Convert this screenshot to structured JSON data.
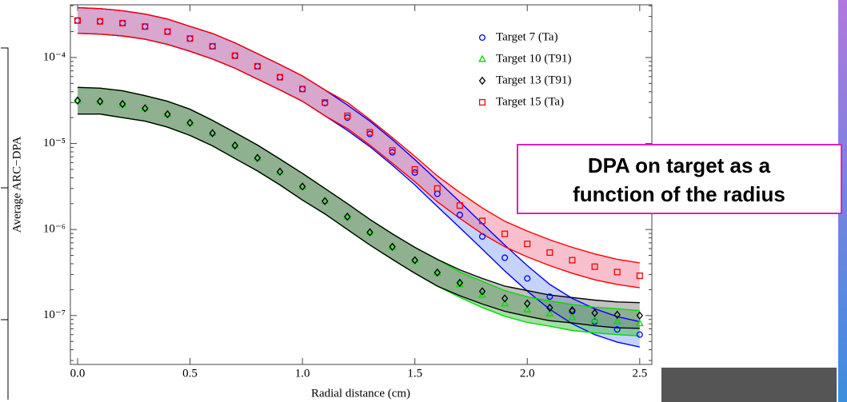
{
  "chart_data": {
    "type": "scatter",
    "y_label": "Average ARC−DPA",
    "x_label": "Radial distance (cm)",
    "log_y": true,
    "legend": "upper right",
    "annotation": [
      "DPA on target as a",
      "function of the radius"
    ],
    "x": [
      0,
      0.1,
      0.2,
      0.3,
      0.4,
      0.5,
      0.6,
      0.7,
      0.8,
      0.9,
      1.0,
      1.1,
      1.2,
      1.3,
      1.4,
      1.5,
      1.6,
      1.7,
      1.8,
      1.9,
      2.0,
      2.1,
      2.2,
      2.3,
      2.4,
      2.5
    ],
    "xlim": [
      -0.032,
      2.554
    ],
    "xticks": [
      {
        "value": 0,
        "label": "0.0"
      },
      {
        "value": 0.5,
        "label": "0.5"
      },
      {
        "value": 1,
        "label": "1.0"
      },
      {
        "value": 1.5,
        "label": "1.5"
      },
      {
        "value": 2,
        "label": "2.0"
      },
      {
        "value": 2.5,
        "label": "2.5"
      }
    ],
    "ylim": [
      2.7e-08,
      0.00041
    ],
    "yticks": [
      {
        "value": 1e-07,
        "label": "10⁻⁷"
      },
      {
        "value": 1e-06,
        "label": "10⁻⁶"
      },
      {
        "value": 1e-05,
        "label": "10⁻⁵"
      },
      {
        "value": 0.0001,
        "label": "10⁻⁴"
      }
    ],
    "series": [
      {
        "name": "Target 7 (Ta)",
        "color": "#0000ff",
        "marker": "circle",
        "band_color": "#7f9fff",
        "values": [
          0.000269,
          0.000263,
          0.000251,
          0.000229,
          0.0002,
          0.000166,
          0.000135,
          0.000105,
          7.9e-05,
          5.9e-05,
          4.3e-05,
          2.95e-05,
          2e-05,
          1.29e-05,
          7.9e-06,
          4.6e-06,
          2.6e-06,
          1.48e-06,
          8.3e-07,
          4.7e-07,
          2.7e-07,
          1.66e-07,
          1.12e-07,
          8.5e-08,
          6.9e-08,
          6e-08
        ],
        "band_upper": [
          0.00038,
          0.00037,
          0.00035,
          0.00032,
          0.00028,
          0.00023,
          0.00019,
          0.000148,
          0.000111,
          8.3e-05,
          6.1e-05,
          4.2e-05,
          2.8e-05,
          1.82e-05,
          1.11e-05,
          6.5e-06,
          3.7e-06,
          2.1e-06,
          1.17e-06,
          6.6e-07,
          3.8e-07,
          2.3e-07,
          1.58e-07,
          1.2e-07,
          9.7e-08,
          8.5e-08
        ],
        "band_lower": [
          0.000191,
          0.000187,
          0.000178,
          0.000163,
          0.000142,
          0.000118,
          9.6e-05,
          7.5e-05,
          5.6e-05,
          4.2e-05,
          3.1e-05,
          2.1e-05,
          1.42e-05,
          9.2e-06,
          5.6e-06,
          3.3e-06,
          1.85e-06,
          1.05e-06,
          5.9e-07,
          3.3e-07,
          1.92e-07,
          1.18e-07,
          8e-08,
          6e-08,
          4.9e-08,
          4.3e-08
        ]
      },
      {
        "name": "Target 10 (T91)",
        "color": "#00dd00",
        "marker": "triangle",
        "band_color": "#33bb33",
        "values": [
          3.16e-05,
          3.09e-05,
          2.88e-05,
          2.57e-05,
          2.19e-05,
          1.74e-05,
          1.32e-05,
          9.5e-06,
          6.8e-06,
          4.7e-06,
          3.16e-06,
          2.14e-06,
          1.41e-06,
          9.3e-07,
          6.3e-07,
          4.4e-07,
          3.16e-07,
          2.3e-07,
          1.74e-07,
          1.38e-07,
          1.17e-07,
          1.05e-07,
          9.5e-08,
          8.9e-08,
          8.5e-08,
          8.1e-08
        ],
        "band_upper": [
          4.5e-05,
          4.4e-05,
          4.1e-05,
          3.6e-05,
          3.1e-05,
          2.5e-05,
          1.86e-05,
          1.34e-05,
          9.6e-06,
          6.6e-06,
          4.5e-06,
          3e-06,
          2e-06,
          1.31e-06,
          8.9e-07,
          6.2e-07,
          4.5e-07,
          3.2e-07,
          2.5e-07,
          1.95e-07,
          1.65e-07,
          1.48e-07,
          1.34e-07,
          1.25e-07,
          1.2e-07,
          1.14e-07
        ],
        "band_lower": [
          2.2e-05,
          2.2e-05,
          2e-05,
          1.82e-05,
          1.55e-05,
          1.24e-05,
          9.4e-06,
          6.7e-06,
          4.8e-06,
          3.3e-06,
          2.2e-06,
          1.52e-06,
          1e-06,
          6.6e-07,
          4.5e-07,
          3.1e-07,
          2.2e-07,
          1.63e-07,
          1.24e-07,
          9.8e-08,
          8.3e-08,
          7.5e-08,
          6.7e-08,
          6.3e-08,
          6e-08,
          5.8e-08
        ]
      },
      {
        "name": "Target 13 (T91)",
        "color": "#000000",
        "marker": "diamond",
        "band_color": "#777777",
        "values": [
          3.16e-05,
          3.09e-05,
          2.88e-05,
          2.57e-05,
          2.19e-05,
          1.74e-05,
          1.32e-05,
          9.5e-06,
          6.8e-06,
          4.7e-06,
          3.16e-06,
          2.14e-06,
          1.41e-06,
          9.3e-07,
          6.3e-07,
          4.4e-07,
          3.16e-07,
          2.4e-07,
          1.91e-07,
          1.58e-07,
          1.38e-07,
          1.23e-07,
          1.15e-07,
          1.07e-07,
          1.02e-07,
          1e-07
        ],
        "band_upper": [
          4.5e-05,
          4.4e-05,
          4.1e-05,
          3.6e-05,
          3.1e-05,
          2.5e-05,
          1.86e-05,
          1.34e-05,
          9.6e-06,
          6.6e-06,
          4.5e-06,
          3e-06,
          2e-06,
          1.31e-06,
          8.9e-07,
          6.2e-07,
          4.5e-07,
          3.4e-07,
          2.7e-07,
          2.2e-07,
          1.95e-07,
          1.73e-07,
          1.62e-07,
          1.51e-07,
          1.44e-07,
          1.41e-07
        ],
        "band_lower": [
          2.2e-05,
          2.2e-05,
          2e-05,
          1.82e-05,
          1.55e-05,
          1.24e-05,
          9.4e-06,
          6.7e-06,
          4.8e-06,
          3.3e-06,
          2.2e-06,
          1.52e-06,
          1e-06,
          6.6e-07,
          4.5e-07,
          3.1e-07,
          2.2e-07,
          1.7e-07,
          1.36e-07,
          1.12e-07,
          9.8e-08,
          8.7e-08,
          8.2e-08,
          7.6e-08,
          7.2e-08,
          7.1e-08
        ]
      },
      {
        "name": "Target 15 (Ta)",
        "color": "#ff0000",
        "marker": "square",
        "band_color": "#f07090",
        "values": [
          0.000269,
          0.000263,
          0.000251,
          0.000229,
          0.0002,
          0.000166,
          0.000135,
          0.000105,
          7.9e-05,
          5.9e-05,
          4.3e-05,
          3e-05,
          2.1e-05,
          1.35e-05,
          8.3e-06,
          5e-06,
          3e-06,
          1.9e-06,
          1.26e-06,
          8.9e-07,
          6.8e-07,
          5.4e-07,
          4.4e-07,
          3.7e-07,
          3.2e-07,
          2.9e-07
        ],
        "band_upper": [
          0.00038,
          0.00037,
          0.00035,
          0.00032,
          0.00028,
          0.00023,
          0.00019,
          0.000148,
          0.000111,
          8.3e-05,
          6.1e-05,
          4.2e-05,
          3e-05,
          1.9e-05,
          1.17e-05,
          7.1e-06,
          4.2e-06,
          2.7e-06,
          1.78e-06,
          1.25e-06,
          9.6e-07,
          7.6e-07,
          6.2e-07,
          5.2e-07,
          4.5e-07,
          4.1e-07
        ],
        "band_lower": [
          0.000191,
          0.000187,
          0.000178,
          0.000163,
          0.000142,
          0.000118,
          9.6e-05,
          7.5e-05,
          5.6e-05,
          4.2e-05,
          3.1e-05,
          2.1e-05,
          1.49e-05,
          9.6e-06,
          5.9e-06,
          3.6e-06,
          2.1e-06,
          1.35e-06,
          8.9e-07,
          6.3e-07,
          4.8e-07,
          3.8e-07,
          3.1e-07,
          2.6e-07,
          2.3e-07,
          2.1e-07
        ]
      }
    ]
  }
}
